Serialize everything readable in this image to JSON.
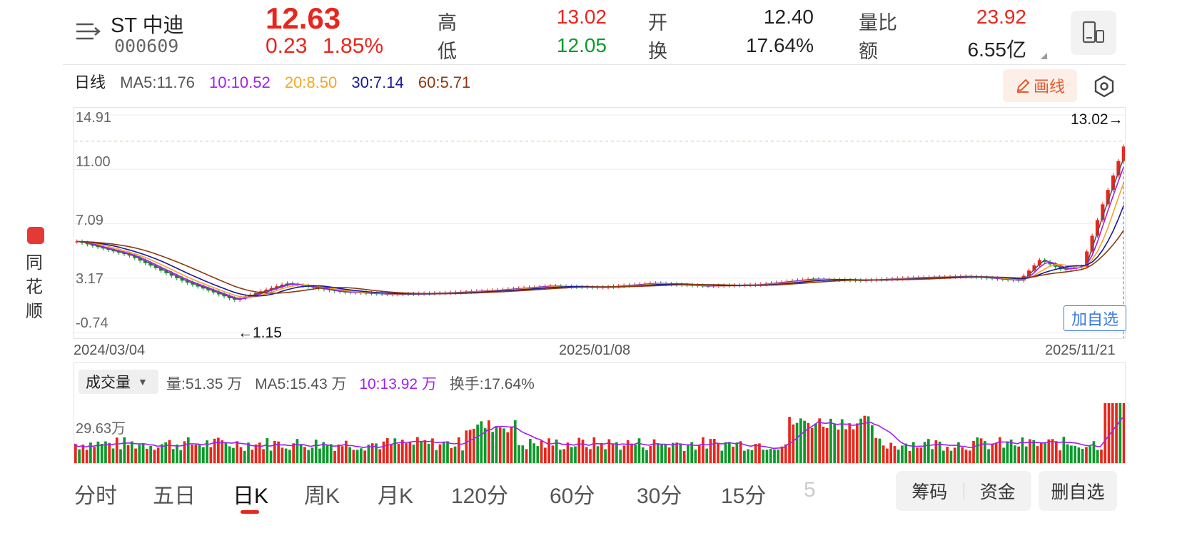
{
  "header": {
    "menu_icon": "hamburger-arrow-icon",
    "name": "ST 中迪",
    "code": "000609",
    "price": "12.63",
    "change": "0.23",
    "change_pct": "1.85%",
    "stats": [
      {
        "label": "高",
        "value": "13.02",
        "color": "#e8261b"
      },
      {
        "label": "低",
        "value": "12.05",
        "color": "#0a9a2a"
      },
      {
        "label": "开",
        "value": "12.40",
        "color": "#222222"
      },
      {
        "label": "换",
        "value": "17.64%",
        "color": "#222222"
      },
      {
        "label": "量比",
        "value": "23.92",
        "color": "#e8261b"
      },
      {
        "label": "额",
        "value": "6.55亿",
        "color": "#222222"
      }
    ],
    "phone_icon": "phone-landscape-icon"
  },
  "ma_bar": {
    "period": "日线",
    "items": [
      {
        "text": "MA5:11.76",
        "color": "#555555"
      },
      {
        "text": "10:10.52",
        "color": "#a020f0"
      },
      {
        "text": "20:8.50",
        "color": "#f5a623"
      },
      {
        "text": "30:7.14",
        "color": "#1a1a9a"
      },
      {
        "text": "60:5.71",
        "color": "#8b3a0f"
      }
    ],
    "draw_label": "画线"
  },
  "chart_data": {
    "type": "candlestick",
    "y_ticks": [
      "14.91",
      "11.00",
      "7.09",
      "3.17",
      "-0.74"
    ],
    "ylim": [
      -0.74,
      14.91
    ],
    "x_labels": [
      "2024/03/04",
      "2025/01/08",
      "2025/11/21"
    ],
    "high_marker": "13.02→",
    "low_marker": "←1.15",
    "high": 13.02,
    "low": 1.15,
    "last_close": 12.63,
    "trend": [
      [
        0,
        5.8
      ],
      [
        5,
        4.8
      ],
      [
        10,
        3.0
      ],
      [
        15,
        1.6
      ],
      [
        20,
        2.8
      ],
      [
        25,
        2.2
      ],
      [
        30,
        2.0
      ],
      [
        35,
        2.1
      ],
      [
        40,
        2.3
      ],
      [
        45,
        2.6
      ],
      [
        50,
        2.5
      ],
      [
        55,
        2.8
      ],
      [
        60,
        2.6
      ],
      [
        65,
        2.7
      ],
      [
        70,
        3.1
      ],
      [
        75,
        3.0
      ],
      [
        80,
        3.2
      ],
      [
        85,
        3.3
      ],
      [
        90,
        3.0
      ],
      [
        92,
        4.5
      ],
      [
        94,
        3.8
      ],
      [
        96,
        4.0
      ],
      [
        98,
        8.5
      ],
      [
        100,
        12.63
      ]
    ]
  },
  "add_favorite": "加自选",
  "side": {
    "app_name": "同花顺"
  },
  "volume": {
    "selector": "成交量",
    "y_tick": "29.63万",
    "info": [
      {
        "text": "量:51.35 万",
        "color": "#555555"
      },
      {
        "text": "MA5:15.43 万",
        "color": "#555555"
      },
      {
        "text": "10:13.92 万",
        "color": "#a020f0"
      },
      {
        "text": "换手:17.64%",
        "color": "#555555"
      }
    ]
  },
  "tabs": [
    "分时",
    "五日",
    "日K",
    "周K",
    "月K",
    "120分",
    "60分",
    "30分",
    "15分",
    "5"
  ],
  "active_tab": "日K",
  "bottom_buttons": {
    "chips": "筹码",
    "funds": "资金",
    "remove_fav": "删自选"
  }
}
